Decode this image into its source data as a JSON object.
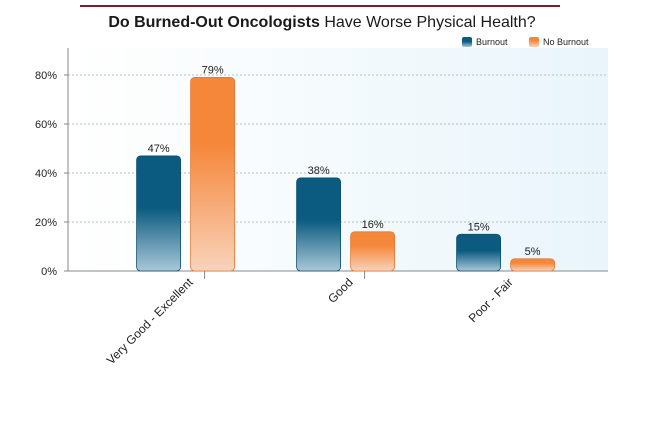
{
  "chart_data": {
    "type": "bar",
    "title_bold": "Do Burned-Out Oncologists",
    "title_rest": " Have Worse Physical Health?",
    "categories": [
      "Very Good - Excellent",
      "Good",
      "Poor - Fair"
    ],
    "series": [
      {
        "name": "Burnout",
        "values": [
          47,
          38,
          15
        ],
        "labels": [
          "47%",
          "38%",
          "15%"
        ],
        "color": "#0b5a80"
      },
      {
        "name": "No Burnout",
        "values": [
          79,
          16,
          5
        ],
        "labels": [
          "79%",
          "16%",
          "5%"
        ],
        "color": "#f5873b"
      }
    ],
    "yticks": [
      0,
      20,
      40,
      60,
      80
    ],
    "ytick_labels": [
      "0%",
      "20%",
      "40%",
      "60%",
      "80%"
    ],
    "ylim": [
      0,
      90
    ],
    "grid": true,
    "legend_position": "top-right",
    "colors": {
      "title_rule": "#7a1e2e",
      "plot_bg": "#eef7fc",
      "grid": "#b8bec4",
      "axis": "#888888"
    }
  }
}
